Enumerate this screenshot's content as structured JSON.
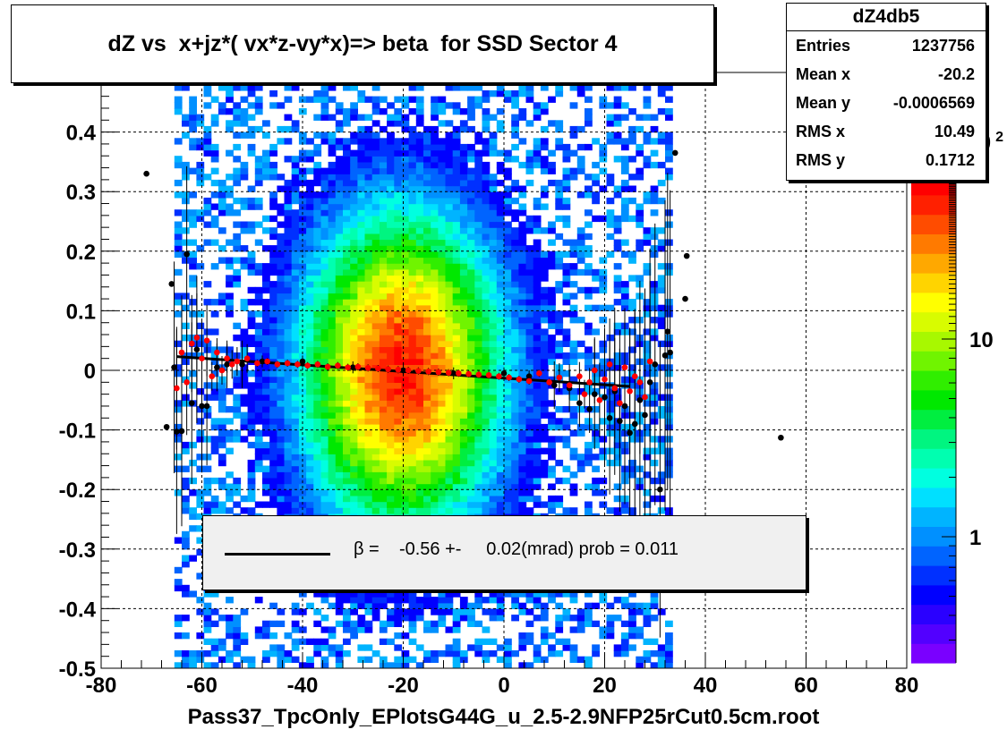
{
  "title": "dZ vs  x+jz*( vx*z-vy*x)=> beta  for SSD Sector 4",
  "stats": {
    "name": "dZ4db5",
    "rows": [
      {
        "label": "Entries",
        "value": "1237756"
      },
      {
        "label": "Mean x",
        "value": "-20.2"
      },
      {
        "label": "Mean y",
        "value": "-0.0006569"
      },
      {
        "label": "RMS x",
        "value": "10.49"
      },
      {
        "label": "RMS y",
        "value": "0.1712"
      }
    ]
  },
  "fit_legend": "β =    -0.56 +-     0.02(mrad) prob = 0.011",
  "xlabel": "Pass37_TpcOnly_EPlotsG44G_u_2.5-2.9NFP25rCut0.5cm.root",
  "chart_data": {
    "type": "heatmap",
    "title": "dZ vs  x+jz*( vx*z-vy*x)=> beta  for SSD Sector 4",
    "xlabel": "Pass37_TpcOnly_EPlotsG44G_u_2.5-2.9NFP25rCut0.5cm.root",
    "ylabel": "",
    "xlim": [
      -80,
      80
    ],
    "ylim": [
      -0.5,
      0.5
    ],
    "x_ticks": [
      -80,
      -60,
      -40,
      -20,
      0,
      20,
      40,
      60,
      80
    ],
    "y_ticks": [
      -0.5,
      -0.4,
      -0.3,
      -0.2,
      -0.1,
      0,
      0.1,
      0.2,
      0.3,
      0.4
    ],
    "y_tick_labels": [
      "-0.5",
      "-0.4",
      "-0.3",
      "-0.2",
      "-0.1",
      "0",
      "0.1",
      "0.2",
      "0.3",
      "0.4"
    ],
    "grid": true,
    "log_z": true,
    "colorbar_ticks": [
      1,
      10
    ],
    "colorbar_labels": [
      "1",
      "10"
    ],
    "distribution": {
      "x_center": -20.2,
      "x_rms": 10.49,
      "y_center": -0.0007,
      "y_rms": 0.1712,
      "x_range": [
        -66,
        33
      ]
    },
    "fit_line": {
      "x": [
        -65,
        25
      ],
      "y": [
        0.023,
        -0.027
      ],
      "slope_label": "β =    -0.56 +-     0.02(mrad) prob = 0.011"
    },
    "profile_black": [
      {
        "x": -71,
        "y": 0.33
      },
      {
        "x": -67,
        "y": -0.095
      },
      {
        "x": -66,
        "y": 0.145
      },
      {
        "x": -65.5,
        "y": 0.005
      },
      {
        "x": -65,
        "y": -0.103
      },
      {
        "x": -64,
        "y": -0.102
      },
      {
        "x": -63,
        "y": 0.195
      },
      {
        "x": -62,
        "y": -0.055
      },
      {
        "x": -61,
        "y": 0.035
      },
      {
        "x": -60,
        "y": -0.06
      },
      {
        "x": -59,
        "y": -0.06
      },
      {
        "x": -57,
        "y": 0.005
      },
      {
        "x": -55,
        "y": 0.01
      },
      {
        "x": -52,
        "y": 0.01
      },
      {
        "x": -48,
        "y": 0.015
      },
      {
        "x": -40,
        "y": 0.015
      },
      {
        "x": -30,
        "y": 0.005
      },
      {
        "x": -20,
        "y": 0.0
      },
      {
        "x": -10,
        "y": -0.005
      },
      {
        "x": 0,
        "y": -0.005
      },
      {
        "x": 5,
        "y": -0.01
      },
      {
        "x": 10,
        "y": -0.025
      },
      {
        "x": 13,
        "y": -0.03
      },
      {
        "x": 15,
        "y": -0.055
      },
      {
        "x": 17,
        "y": -0.065
      },
      {
        "x": 18,
        "y": -0.04
      },
      {
        "x": 20,
        "y": -0.045
      },
      {
        "x": 21,
        "y": -0.08
      },
      {
        "x": 22,
        "y": -0.035
      },
      {
        "x": 23,
        "y": -0.085
      },
      {
        "x": 24,
        "y": -0.06
      },
      {
        "x": 25,
        "y": -0.105
      },
      {
        "x": 26,
        "y": -0.09
      },
      {
        "x": 27,
        "y": -0.05
      },
      {
        "x": 28,
        "y": -0.075
      },
      {
        "x": 29,
        "y": -0.02
      },
      {
        "x": 30,
        "y": 0.01
      },
      {
        "x": 31,
        "y": -0.2
      },
      {
        "x": 32,
        "y": 0.025
      },
      {
        "x": 32.5,
        "y": 0.065
      },
      {
        "x": 33,
        "y": 0.03
      },
      {
        "x": 34,
        "y": 0.365
      },
      {
        "x": 36,
        "y": 0.12
      },
      {
        "x": 36.3,
        "y": 0.192
      },
      {
        "x": 55,
        "y": -0.113
      }
    ],
    "profile_red": [
      {
        "x": -65,
        "y": -0.03
      },
      {
        "x": -64,
        "y": 0.03
      },
      {
        "x": -63,
        "y": -0.02
      },
      {
        "x": -62,
        "y": 0.045
      },
      {
        "x": -61,
        "y": 0.055
      },
      {
        "x": -60,
        "y": 0.02
      },
      {
        "x": -59,
        "y": 0.05
      },
      {
        "x": -58,
        "y": -0.01
      },
      {
        "x": -57,
        "y": 0.03
      },
      {
        "x": -56,
        "y": 0.0
      },
      {
        "x": -55,
        "y": 0.02
      },
      {
        "x": -54,
        "y": 0.01
      },
      {
        "x": -53,
        "y": 0.015
      },
      {
        "x": -51,
        "y": 0.02
      },
      {
        "x": -49,
        "y": 0.012
      },
      {
        "x": -47,
        "y": 0.015
      },
      {
        "x": -45,
        "y": 0.01
      },
      {
        "x": -43,
        "y": 0.012
      },
      {
        "x": -41,
        "y": 0.01
      },
      {
        "x": -39,
        "y": 0.008
      },
      {
        "x": -37,
        "y": 0.01
      },
      {
        "x": -35,
        "y": 0.006
      },
      {
        "x": -33,
        "y": 0.008
      },
      {
        "x": -31,
        "y": 0.005
      },
      {
        "x": -29,
        "y": 0.006
      },
      {
        "x": -27,
        "y": 0.004
      },
      {
        "x": -25,
        "y": 0.003
      },
      {
        "x": -23,
        "y": 0.002
      },
      {
        "x": -21,
        "y": 0.001
      },
      {
        "x": -19,
        "y": 0.0
      },
      {
        "x": -17,
        "y": -0.001
      },
      {
        "x": -15,
        "y": -0.002
      },
      {
        "x": -13,
        "y": -0.003
      },
      {
        "x": -11,
        "y": -0.004
      },
      {
        "x": -9,
        "y": -0.005
      },
      {
        "x": -7,
        "y": -0.006
      },
      {
        "x": -5,
        "y": -0.007
      },
      {
        "x": -3,
        "y": -0.008
      },
      {
        "x": -1,
        "y": -0.01
      },
      {
        "x": 1,
        "y": -0.012
      },
      {
        "x": 3,
        "y": -0.015
      },
      {
        "x": 5,
        "y": -0.018
      },
      {
        "x": 7,
        "y": -0.005
      },
      {
        "x": 9,
        "y": -0.02
      },
      {
        "x": 11,
        "y": -0.012
      },
      {
        "x": 13,
        "y": -0.025
      },
      {
        "x": 15,
        "y": -0.01
      },
      {
        "x": 16,
        "y": -0.04
      },
      {
        "x": 17,
        "y": -0.02
      },
      {
        "x": 18,
        "y": 0.0
      },
      {
        "x": 19,
        "y": -0.05
      },
      {
        "x": 20,
        "y": -0.015
      },
      {
        "x": 21,
        "y": 0.01
      },
      {
        "x": 22,
        "y": -0.03
      },
      {
        "x": 23,
        "y": -0.055
      },
      {
        "x": 24,
        "y": 0.005
      },
      {
        "x": 25,
        "y": -0.035
      },
      {
        "x": 26,
        "y": -0.01
      },
      {
        "x": 27,
        "y": -0.02
      },
      {
        "x": 28,
        "y": -0.045
      },
      {
        "x": 29,
        "y": 0.015
      }
    ]
  }
}
